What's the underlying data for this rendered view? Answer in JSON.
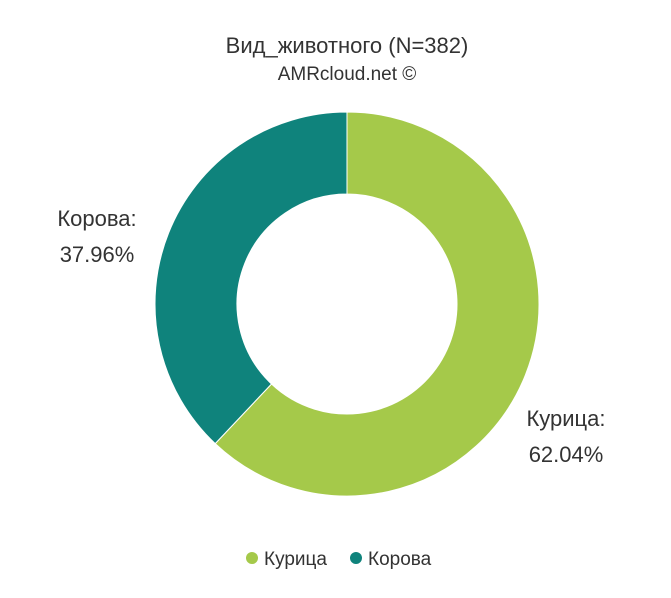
{
  "chart_data": {
    "type": "pie",
    "variant": "donut",
    "title": "Вид_животного (N=382)",
    "subtitle": "AMRcloud.net ©",
    "series": [
      {
        "categories": [
          "Курица",
          "Корова"
        ],
        "values": [
          62.04,
          37.96
        ],
        "value_labels": [
          "62.04%",
          "37.96%"
        ],
        "colors": [
          "#a5c94a",
          "#0f837c"
        ]
      }
    ],
    "data_labels": {
      "Курица": {
        "name": "Курица:",
        "value": "62.04%"
      },
      "Корова": {
        "name": "Корова:",
        "value": "37.96%"
      }
    },
    "legend": {
      "position": "bottom",
      "items": [
        {
          "label": "Курица",
          "color": "#a5c94a"
        },
        {
          "label": "Корова",
          "color": "#0f837c"
        }
      ]
    }
  }
}
